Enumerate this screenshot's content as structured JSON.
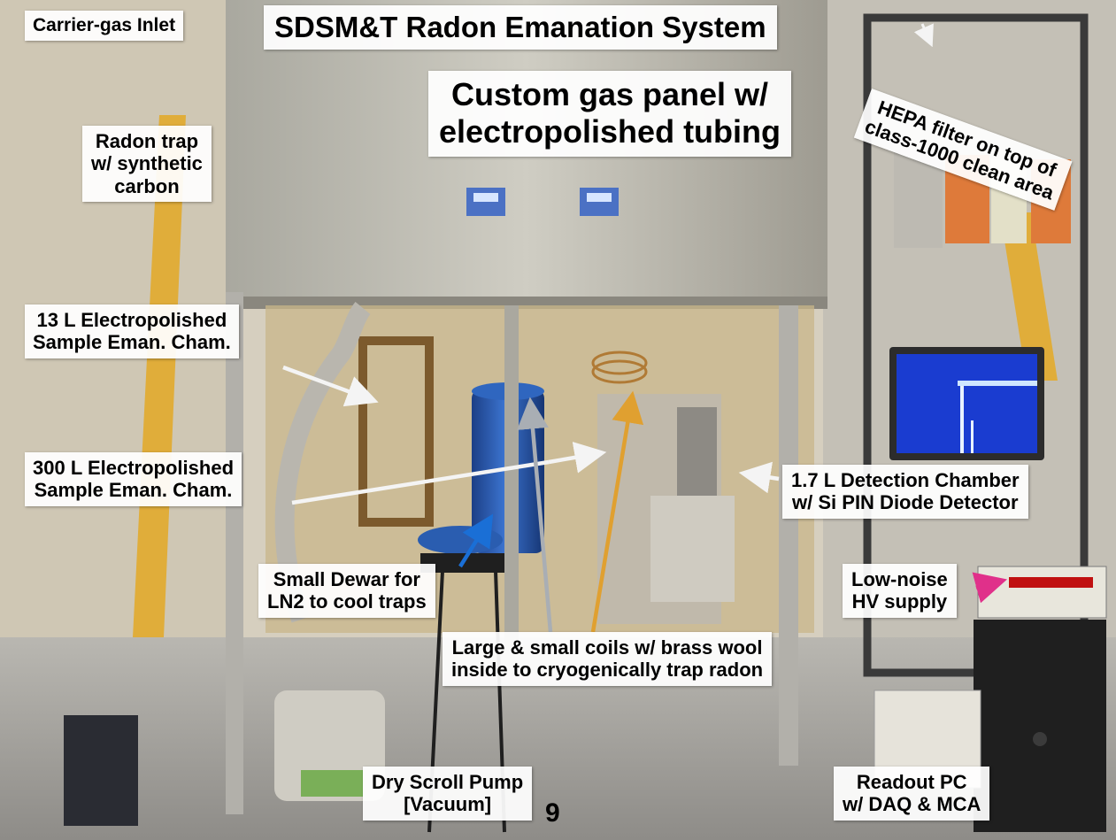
{
  "title": "SDSM&T Radon Emanation System",
  "subtitle": {
    "line1": "Custom gas panel w/",
    "line2": "electropolished tubing"
  },
  "labels": {
    "carrier_gas_inlet": "Carrier-gas Inlet",
    "radon_trap": [
      "Radon trap",
      "w/ synthetic",
      "carbon"
    ],
    "hepa_filter": [
      "HEPA filter on top of",
      "class-1000 clean area"
    ],
    "chamber_13l": [
      "13 L Electropolished",
      "Sample Eman. Cham."
    ],
    "chamber_300l": [
      "300 L Electropolished",
      "Sample Eman. Cham."
    ],
    "detection_chamber": [
      "1.7 L Detection Chamber",
      "w/ Si PIN Diode Detector"
    ],
    "small_dewar": [
      "Small Dewar for",
      "LN2 to cool traps"
    ],
    "hv_supply": [
      "Low-noise",
      "HV supply"
    ],
    "coils": [
      "Large & small coils w/ brass wool",
      "inside to cryogenically trap radon"
    ],
    "scroll_pump": [
      "Dry Scroll Pump",
      "[Vacuum]"
    ],
    "readout_pc": [
      "Readout PC",
      "w/ DAQ & MCA"
    ]
  },
  "page_number": "9",
  "colors": {
    "arrow_white": "#f4f4f4",
    "arrow_gray": "#a9aeb4",
    "arrow_orange": "#e0a030",
    "arrow_blue": "#1a6fd6",
    "arrow_magenta": "#e0308a",
    "dewar_blue": "#2a5db0",
    "monitor_blue": "#1a3cd0"
  },
  "icons": {
    "photo": "lab-apparatus-photo"
  }
}
